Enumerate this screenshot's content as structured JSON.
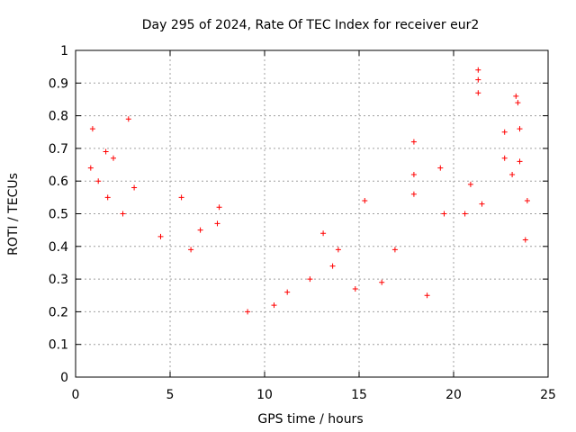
{
  "chart_data": {
    "type": "scatter",
    "title": "Day 295 of 2024, Rate Of TEC Index for receiver eur2",
    "xlabel": "GPS time / hours",
    "ylabel": "ROTI / TECUs",
    "xlim": [
      0,
      25
    ],
    "ylim": [
      0,
      1
    ],
    "xticks": [
      "0",
      "5",
      "10",
      "15",
      "20",
      "25"
    ],
    "yticks": [
      "0",
      "0.1",
      "0.2",
      "0.3",
      "0.4",
      "0.5",
      "0.6",
      "0.7",
      "0.8",
      "0.9",
      "1"
    ],
    "grid": true,
    "marker": "+",
    "color": "#ff0000",
    "series": [
      {
        "points": [
          [
            0.9,
            0.76
          ],
          [
            2.8,
            0.79
          ],
          [
            1.6,
            0.69
          ],
          [
            2.0,
            0.67
          ],
          [
            1.2,
            0.6
          ],
          [
            0.8,
            0.64
          ],
          [
            3.1,
            0.58
          ],
          [
            5.6,
            0.55
          ],
          [
            7.6,
            0.52
          ],
          [
            7.5,
            0.47
          ],
          [
            2.5,
            0.5
          ],
          [
            1.7,
            0.55
          ],
          [
            4.5,
            0.43
          ],
          [
            6.6,
            0.45
          ],
          [
            6.1,
            0.39
          ],
          [
            13.1,
            0.44
          ],
          [
            13.6,
            0.34
          ],
          [
            13.9,
            0.39
          ],
          [
            15.3,
            0.54
          ],
          [
            17.9,
            0.72
          ],
          [
            17.9,
            0.62
          ],
          [
            17.9,
            0.56
          ],
          [
            16.9,
            0.39
          ],
          [
            19.3,
            0.64
          ],
          [
            19.5,
            0.5
          ],
          [
            20.6,
            0.5
          ],
          [
            21.3,
            0.94
          ],
          [
            21.3,
            0.91
          ],
          [
            21.3,
            0.87
          ],
          [
            20.9,
            0.59
          ],
          [
            21.5,
            0.53
          ],
          [
            22.7,
            0.75
          ],
          [
            22.7,
            0.67
          ],
          [
            23.3,
            0.86
          ],
          [
            23.4,
            0.84
          ],
          [
            23.5,
            0.76
          ],
          [
            23.5,
            0.66
          ],
          [
            23.9,
            0.54
          ],
          [
            23.1,
            0.62
          ],
          [
            23.8,
            0.42
          ],
          [
            9.1,
            0.2
          ],
          [
            10.5,
            0.22
          ],
          [
            11.2,
            0.26
          ],
          [
            12.4,
            0.3
          ],
          [
            14.8,
            0.27
          ],
          [
            16.2,
            0.29
          ],
          [
            18.6,
            0.25
          ]
        ]
      }
    ]
  }
}
